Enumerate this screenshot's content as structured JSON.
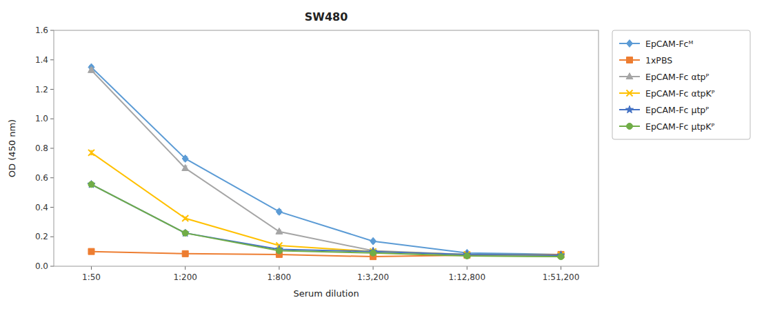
{
  "chart_data": {
    "type": "line",
    "title": "SW480",
    "x_label": "Serum dilution",
    "y_label": "OD (450 nm)",
    "categories": [
      "1:50",
      "1:200",
      "1:800",
      "1:3,200",
      "1:12,800",
      "1:51,200"
    ],
    "ylim": [
      0.0,
      1.6
    ],
    "yticks": [
      {
        "value": 0.0,
        "label": "0.0"
      },
      0.2,
      0.4,
      0.6,
      0.8,
      {
        "value": 1.0,
        "label": "1.0"
      },
      1.2,
      1.4,
      1.6
    ],
    "grid": false,
    "legend": "right",
    "series": [
      {
        "name": "EpCAM-Fcᴹ",
        "color": "#5B9BD5",
        "marker": "diamond",
        "values": [
          1.35,
          0.73,
          0.37,
          0.17,
          0.09,
          0.08
        ],
        "errors": [
          0.012,
          0.015,
          0.015,
          0.01,
          0.005,
          0.005
        ]
      },
      {
        "name": "1xPBS",
        "color": "#ED7D31",
        "marker": "square",
        "values": [
          0.1,
          0.085,
          0.08,
          0.065,
          0.075,
          0.08
        ],
        "errors": [
          0.005,
          0.005,
          0.005,
          0.005,
          0.005,
          0.005
        ]
      },
      {
        "name": "EpCAM-Fc αtpᴾ",
        "color": "#A5A5A5",
        "marker": "triangle",
        "values": [
          1.33,
          0.665,
          0.235,
          0.105,
          0.08,
          0.075
        ],
        "errors": [
          0.015,
          0.015,
          0.01,
          0.01,
          0.005,
          0.005
        ]
      },
      {
        "name": "EpCAM-Fc αtpKᴾ",
        "color": "#FFC000",
        "marker": "x",
        "values": [
          0.77,
          0.325,
          0.14,
          0.1,
          0.08,
          0.075
        ],
        "errors": [
          0.015,
          0.01,
          0.008,
          0.005,
          0.005,
          0.005
        ]
      },
      {
        "name": "EpCAM-Fc μtpᴾ",
        "color": "#4472C4",
        "marker": "star",
        "values": [
          0.555,
          0.225,
          0.115,
          0.1,
          0.08,
          0.075
        ],
        "errors": [
          0.01,
          0.008,
          0.008,
          0.005,
          0.005,
          0.005
        ]
      },
      {
        "name": "EpCAM-Fc μtpKᴾ",
        "color": "#70AD47",
        "marker": "circle",
        "values": [
          0.555,
          0.225,
          0.105,
          0.09,
          0.07,
          0.065
        ],
        "errors": [
          0.012,
          0.01,
          0.008,
          0.005,
          0.005,
          0.005
        ]
      }
    ]
  }
}
